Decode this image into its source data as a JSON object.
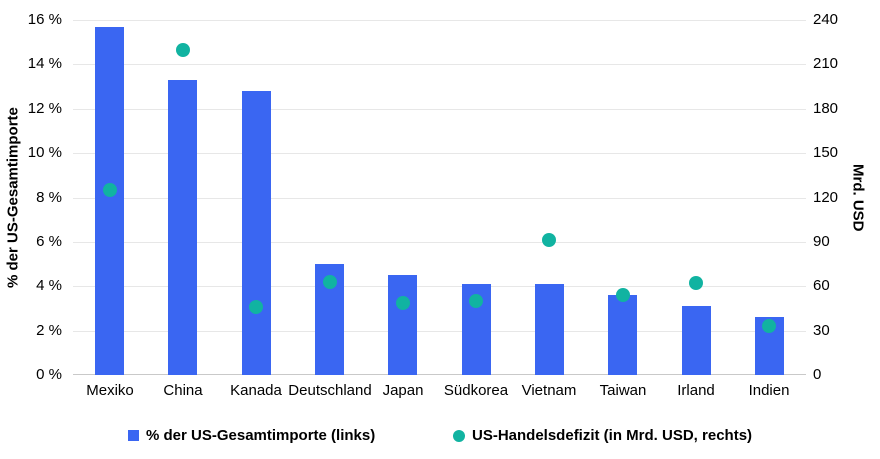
{
  "chart_data": {
    "type": "bar",
    "subtype": "dual-axis bar + scatter",
    "categories": [
      "Mexiko",
      "China",
      "Kanada",
      "Deutschland",
      "Japan",
      "Südkorea",
      "Vietnam",
      "Taiwan",
      "Irland",
      "Indien"
    ],
    "series": [
      {
        "name": "% der US-Gesamtimporte (links)",
        "type": "bar",
        "axis": "left",
        "values": [
          15.7,
          13.3,
          12.8,
          5.0,
          4.5,
          4.1,
          4.1,
          3.6,
          3.1,
          2.6
        ]
      },
      {
        "name": "US-Handelsdefizit (in Mrd. USD, rechts)",
        "type": "scatter",
        "axis": "right",
        "values": [
          125,
          220,
          46,
          63,
          49,
          50,
          91,
          54,
          62,
          33
        ]
      }
    ],
    "left_axis": {
      "label": "% der US-Gesamtimporte",
      "min": 0,
      "max": 16,
      "tick_step": 2,
      "ticks": [
        "0 %",
        "2 %",
        "4 %",
        "6 %",
        "8 %",
        "10 %",
        "12 %",
        "14 %",
        "16 %"
      ]
    },
    "right_axis": {
      "label": "Mrd. USD",
      "min": 0,
      "max": 240,
      "tick_step": 30,
      "ticks": [
        "0",
        "30",
        "60",
        "90",
        "120",
        "150",
        "180",
        "210",
        "240"
      ]
    },
    "legend": [
      {
        "label": "% der US-Gesamtimporte (links)",
        "marker": "square",
        "color": "#3a66f2"
      },
      {
        "label": "US-Handelsdefizit (in Mrd. USD, rechts)",
        "marker": "circle",
        "color": "#11b3a1"
      }
    ],
    "layout": {
      "grid": "horizontal",
      "legend_position": "bottom"
    },
    "colors": {
      "bar": "#3a66f2",
      "dot": "#11b3a1",
      "gridline": "#e7e7e7",
      "baseline": "#c9c9c9",
      "text": "#000000",
      "background": "#ffffff"
    }
  }
}
